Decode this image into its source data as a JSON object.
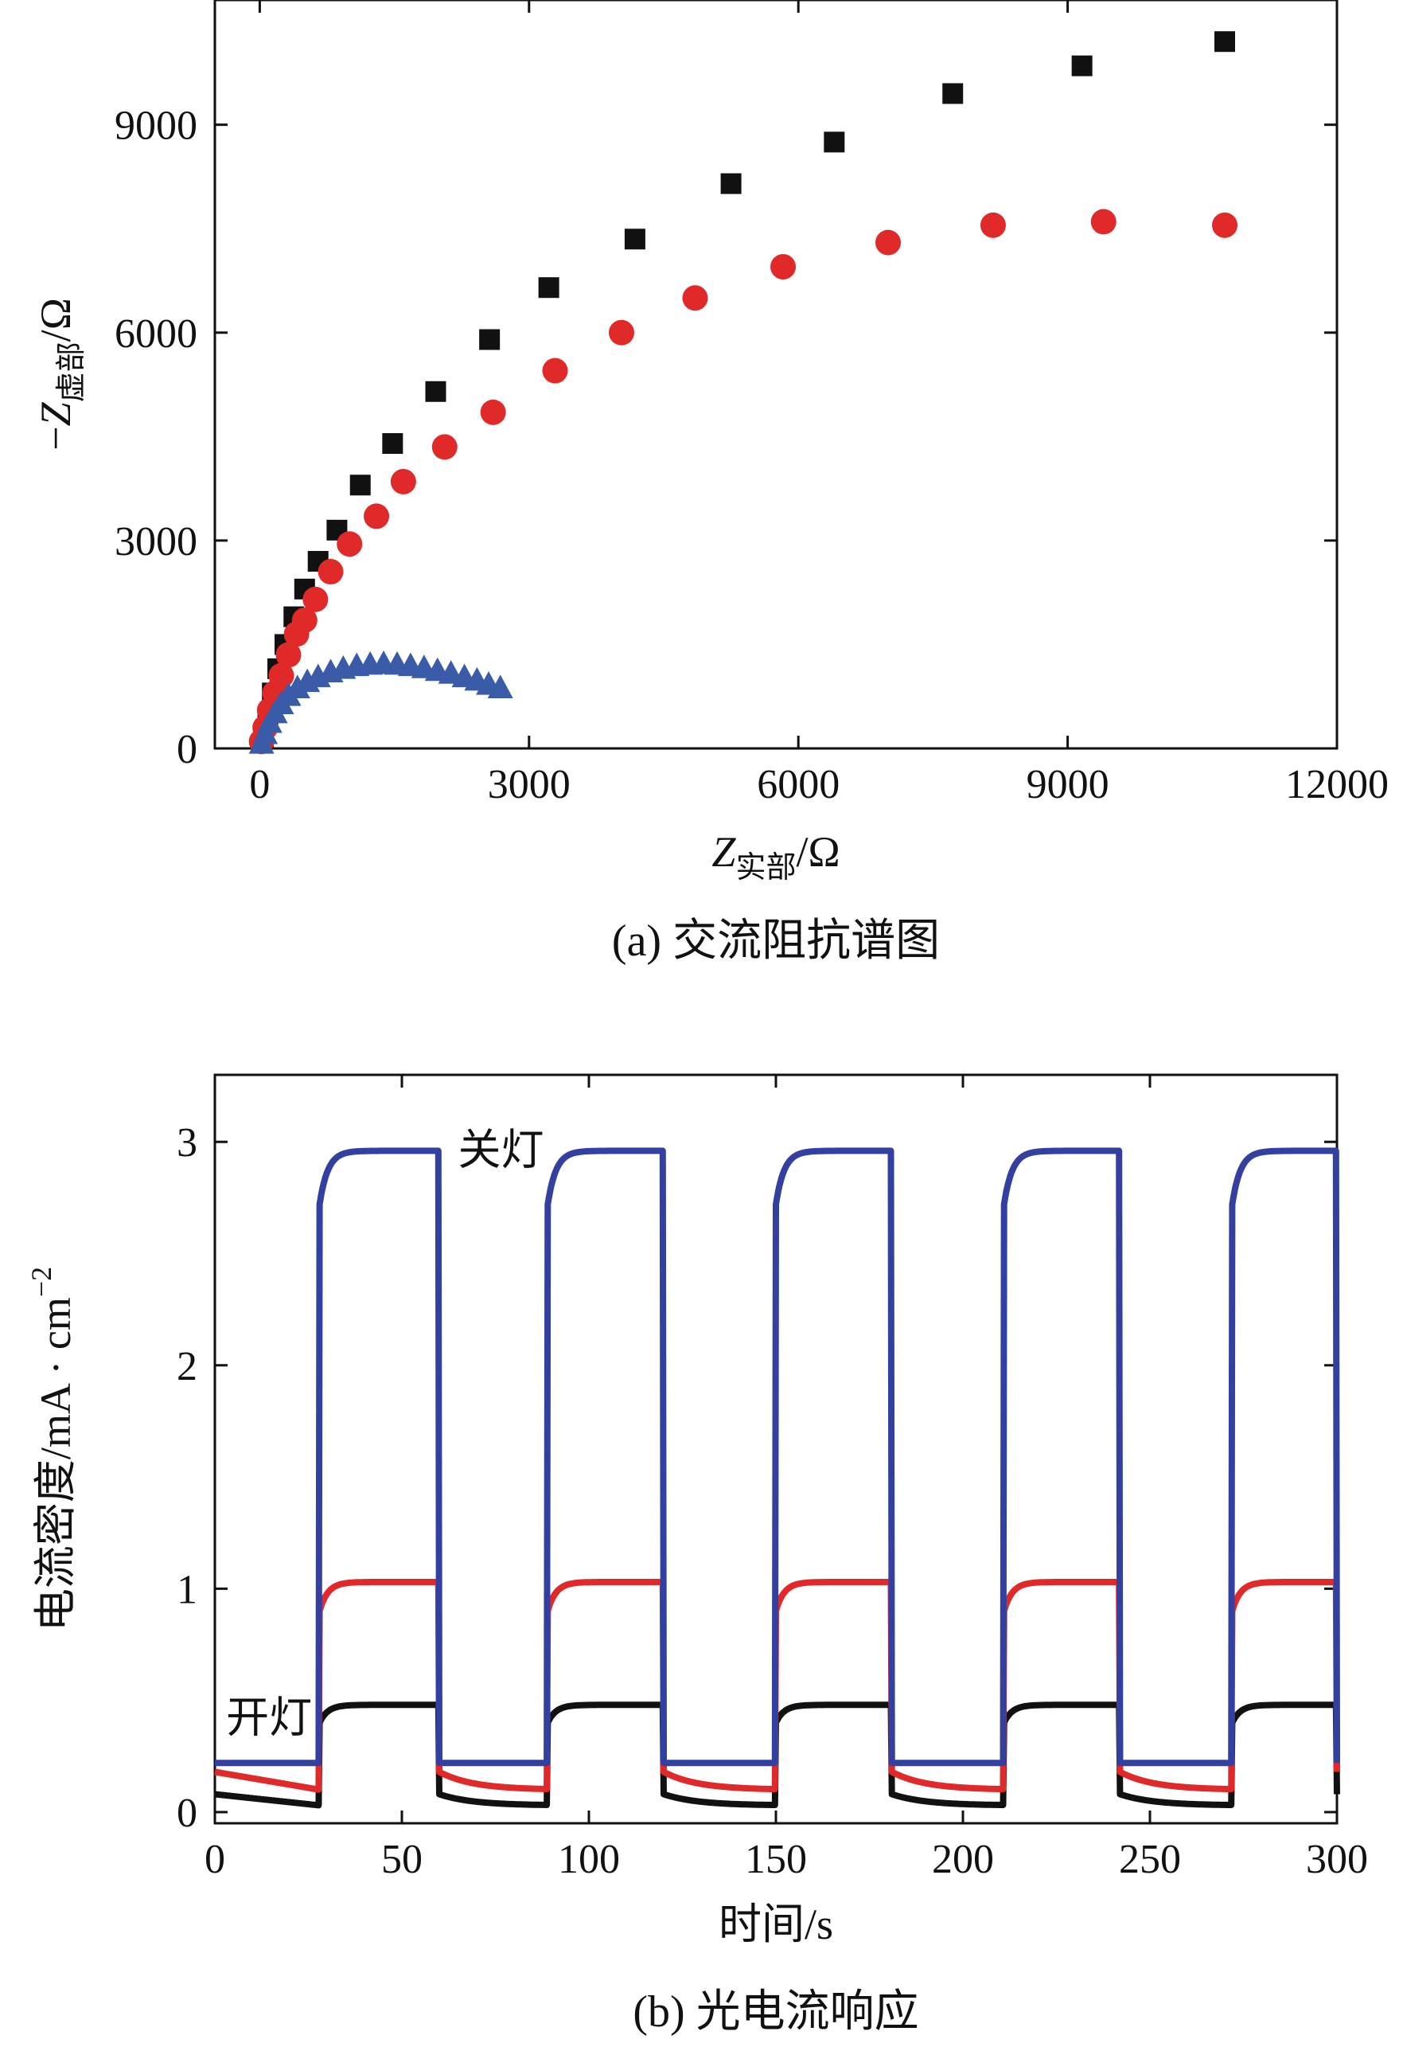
{
  "chart_data": [
    {
      "type": "scatter",
      "caption": "(a) 交流阻抗谱图",
      "xlabel": {
        "main": "Z",
        "sub": "实部",
        "unit": "/Ω"
      },
      "ylabel": {
        "prefix": "−",
        "main": "Z",
        "sub": "虚部",
        "unit": "/Ω"
      },
      "xlim": [
        -500,
        12000
      ],
      "ylim": [
        0,
        10800
      ],
      "xticks": [
        0,
        3000,
        6000,
        9000,
        12000
      ],
      "yticks": [
        0,
        3000,
        6000,
        9000
      ],
      "xtick_labels": [
        "0",
        "3000",
        "6000",
        "9000",
        "12000"
      ],
      "ytick_labels": [
        "0",
        "3000",
        "6000",
        "9000"
      ],
      "grid": false,
      "series": [
        {
          "marker": "square",
          "color": "#111111",
          "points": [
            [
              40,
              150
            ],
            [
              90,
              450
            ],
            [
              140,
              800
            ],
            [
              200,
              1150
            ],
            [
              280,
              1500
            ],
            [
              380,
              1900
            ],
            [
              500,
              2300
            ],
            [
              650,
              2700
            ],
            [
              860,
              3150
            ],
            [
              1120,
              3800
            ],
            [
              1480,
              4400
            ],
            [
              1960,
              5150
            ],
            [
              2560,
              5900
            ],
            [
              3220,
              6650
            ],
            [
              4180,
              7350
            ],
            [
              5250,
              8150
            ],
            [
              6400,
              8750
            ],
            [
              7720,
              9450
            ],
            [
              9160,
              9850
            ],
            [
              10750,
              10200
            ]
          ]
        },
        {
          "marker": "circle",
          "color": "#e02a2a",
          "points": [
            [
              20,
              100
            ],
            [
              60,
              300
            ],
            [
              110,
              550
            ],
            [
              170,
              800
            ],
            [
              240,
              1050
            ],
            [
              320,
              1350
            ],
            [
              410,
              1650
            ],
            [
              500,
              1850
            ],
            [
              620,
              2150
            ],
            [
              790,
              2550
            ],
            [
              1000,
              2950
            ],
            [
              1300,
              3350
            ],
            [
              1600,
              3850
            ],
            [
              2060,
              4350
            ],
            [
              2600,
              4850
            ],
            [
              3290,
              5450
            ],
            [
              4030,
              6000
            ],
            [
              4850,
              6500
            ],
            [
              5830,
              6950
            ],
            [
              7000,
              7300
            ],
            [
              8170,
              7550
            ],
            [
              9400,
              7600
            ],
            [
              10750,
              7550
            ]
          ]
        },
        {
          "marker": "triangle",
          "color": "#3a5ca8",
          "points": [
            [
              20,
              80
            ],
            [
              60,
              220
            ],
            [
              110,
              380
            ],
            [
              170,
              520
            ],
            [
              240,
              650
            ],
            [
              320,
              770
            ],
            [
              420,
              880
            ],
            [
              530,
              970
            ],
            [
              650,
              1040
            ],
            [
              790,
              1110
            ],
            [
              930,
              1160
            ],
            [
              1080,
              1200
            ],
            [
              1230,
              1220
            ],
            [
              1380,
              1230
            ],
            [
              1530,
              1220
            ],
            [
              1680,
              1200
            ],
            [
              1830,
              1170
            ],
            [
              1980,
              1130
            ],
            [
              2130,
              1090
            ],
            [
              2280,
              1040
            ],
            [
              2420,
              990
            ],
            [
              2550,
              930
            ],
            [
              2680,
              880
            ]
          ]
        }
      ]
    },
    {
      "type": "line",
      "caption": "(b) 光电流响应",
      "xlabel": "时间/s",
      "ylabel": {
        "main": "电流密度/mA · cm",
        "sup": "−2"
      },
      "xlim": [
        0,
        300
      ],
      "ylim": [
        -0.05,
        3.3
      ],
      "xticks": [
        0,
        50,
        100,
        150,
        200,
        250,
        300
      ],
      "yticks": [
        0,
        1,
        2,
        3
      ],
      "xtick_labels": [
        "0",
        "50",
        "100",
        "150",
        "200",
        "250",
        "300"
      ],
      "ytick_labels": [
        "0",
        "1",
        "2",
        "3"
      ],
      "grid": false,
      "annotations": [
        {
          "text": "关灯",
          "x": 65,
          "y": 2.97
        },
        {
          "text": "开灯",
          "x": 3,
          "y": 0.43
        }
      ],
      "light_on_intervals": [
        [
          28,
          60
        ],
        [
          89,
          120
        ],
        [
          150,
          181
        ],
        [
          211,
          242
        ],
        [
          272,
          300
        ]
      ],
      "series": [
        {
          "color": "#3340a0",
          "dark_start": 0.22,
          "dark_end": 0.22,
          "on_start": 2.72,
          "on_plateau": 2.96
        },
        {
          "color": "#e02a2a",
          "dark_start": 0.18,
          "dark_end": 0.1,
          "on_start": 0.9,
          "on_plateau": 1.03
        },
        {
          "color": "#111111",
          "dark_start": 0.08,
          "dark_end": 0.03,
          "on_start": 0.4,
          "on_plateau": 0.48
        }
      ]
    }
  ]
}
